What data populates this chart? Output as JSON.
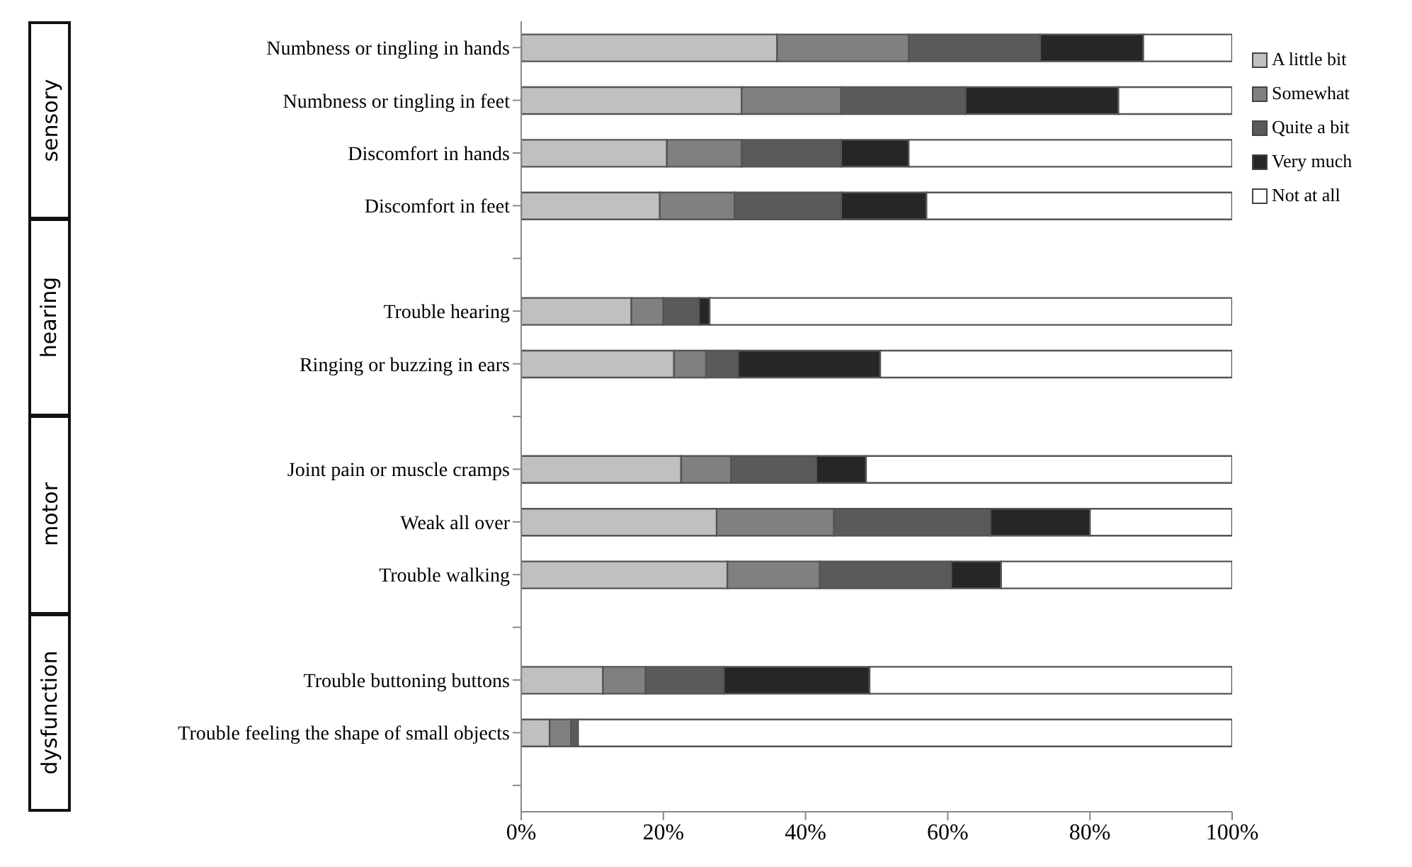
{
  "chart_data": {
    "type": "bar",
    "orientation": "horizontal",
    "stacked": true,
    "categories": [
      "Numbness or tingling  in hands",
      "Numbness or tingling  in feet",
      "Discomfort in hands",
      "Discomfort in feet",
      null,
      "Trouble hearing",
      "Ringing or buzzing in ears",
      null,
      "Joint pain or muscle cramps",
      "Weak all over",
      "Trouble walking",
      null,
      "Trouble buttoning buttons",
      "Trouble feeling  the shape of small objects",
      null
    ],
    "series": [
      {
        "name": "A little bit",
        "color": "#c0c0c0",
        "values": [
          36,
          31,
          20.5,
          19.5,
          null,
          15.5,
          21.5,
          null,
          22.5,
          27.5,
          29,
          null,
          11.5,
          4,
          null
        ]
      },
      {
        "name": "Somewhat",
        "color": "#808080",
        "values": [
          18.5,
          14,
          10.5,
          10.5,
          null,
          4.5,
          4.5,
          null,
          7,
          16.5,
          13,
          null,
          6,
          3,
          null
        ]
      },
      {
        "name": "Quite a bit",
        "color": "#5a5a5a",
        "values": [
          18.5,
          17.5,
          14,
          15,
          null,
          5,
          4.5,
          null,
          12,
          22,
          18.5,
          null,
          11,
          1,
          null
        ]
      },
      {
        "name": "Very much",
        "color": "#262626",
        "values": [
          14.5,
          21.5,
          9.5,
          12,
          null,
          1.5,
          20,
          null,
          7,
          14,
          7,
          null,
          20.5,
          0,
          null
        ]
      },
      {
        "name": "Not at all",
        "color": "#ffffff",
        "values": [
          12.5,
          16,
          45.5,
          43,
          null,
          73.5,
          49.5,
          null,
          51.5,
          20,
          32.5,
          null,
          51,
          92,
          null
        ]
      }
    ],
    "xlim": [
      0,
      100
    ],
    "xticks": [
      {
        "value": 0,
        "label": "0%"
      },
      {
        "value": 20,
        "label": "20%"
      },
      {
        "value": 40,
        "label": "40%"
      },
      {
        "value": 60,
        "label": "60%"
      },
      {
        "value": 80,
        "label": "80%"
      },
      {
        "value": 100,
        "label": "100%"
      }
    ],
    "legend": "right",
    "annotations": [
      "sensory",
      "hearing",
      "motor",
      "dysfunction"
    ]
  }
}
